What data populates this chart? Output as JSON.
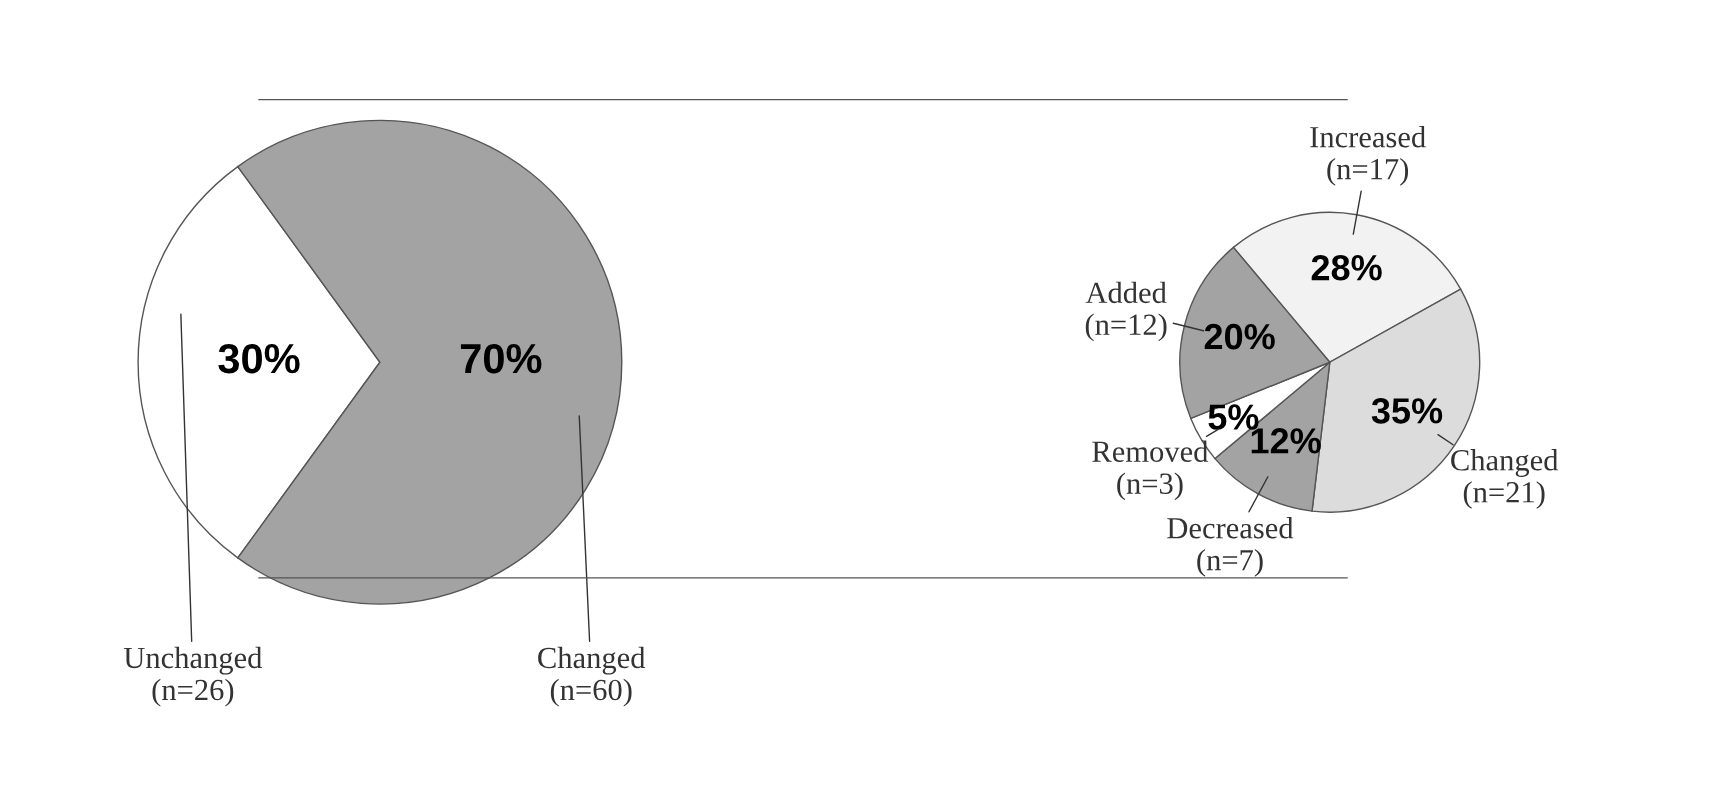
{
  "chart_data": [
    {
      "type": "pie",
      "categories": [
        "Unchanged\n(n=26)",
        "Changed\n(n=60)"
      ],
      "values": [
        30,
        70
      ],
      "colors": [
        "#ffffff",
        "#a3a3a3"
      ],
      "value_labels": [
        "30%",
        "70%"
      ]
    },
    {
      "type": "pie",
      "categories": [
        "Increased\n(n=17)",
        "Changed\n(n=21)",
        "Decreased\n(n=7)",
        "Removed\n(n=3)",
        "Added\n(n=12)"
      ],
      "values": [
        28,
        35,
        12,
        5,
        20
      ],
      "colors": [
        "#f2f2f2",
        "#dcdcdc",
        "#a3a3a3",
        "#ffffff",
        "#a3a3a3"
      ],
      "value_labels": [
        "28%",
        "35%",
        "12%",
        "5%",
        "20%"
      ]
    }
  ]
}
